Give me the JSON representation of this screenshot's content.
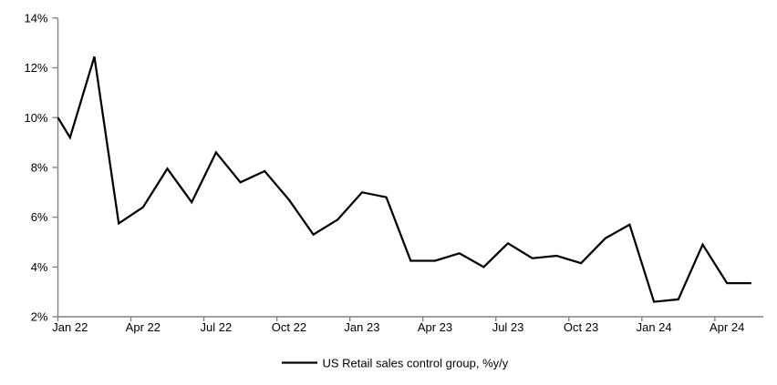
{
  "chart_data": {
    "type": "line",
    "title": "",
    "x": [
      "Jan 22",
      "Feb 22",
      "Mar 22",
      "Apr 22",
      "May 22",
      "Jun 22",
      "Jul 22",
      "Aug 22",
      "Sep 22",
      "Oct 22",
      "Nov 22",
      "Dec 22",
      "Jan 23",
      "Feb 23",
      "Mar 23",
      "Apr 23",
      "May 23",
      "Jun 23",
      "Jul 23",
      "Aug 23",
      "Sep 23",
      "Oct 23",
      "Nov 23",
      "Dec 23",
      "Jan 24",
      "Feb 24",
      "Mar 24",
      "Apr 24",
      "May 24"
    ],
    "series": [
      {
        "name": "US Retail sales control group, %y/y",
        "color": "#000000",
        "values": [
          9.2,
          12.45,
          5.75,
          6.4,
          7.95,
          6.6,
          8.6,
          7.4,
          7.85,
          6.7,
          5.3,
          5.9,
          7.0,
          6.8,
          4.25,
          4.25,
          4.55,
          4.0,
          4.95,
          4.35,
          4.45,
          4.15,
          5.15,
          5.7,
          2.6,
          2.7,
          4.9,
          3.35,
          3.35
        ]
      }
    ],
    "line_enters_left_axis_at_value": 10.0,
    "ylim": [
      2,
      14
    ],
    "y_tick_step": 2,
    "y_tick_labels": [
      "14%",
      "12%",
      "10%",
      "8%",
      "6%",
      "4%",
      "2%"
    ],
    "x_tick_labels": [
      "Jan 22",
      "Apr 22",
      "Jul 22",
      "Oct 22",
      "Jan 23",
      "Apr 23",
      "Jul 23",
      "Oct 23",
      "Jan 24",
      "Apr 24"
    ],
    "x_tick_every_months": 3,
    "grid": false,
    "legend_position": "bottom-center",
    "axis_color": "#848484",
    "text_color": "#000000",
    "background": "#FFFFFF"
  },
  "legend": {
    "label": "US Retail sales control group, %y/y"
  }
}
